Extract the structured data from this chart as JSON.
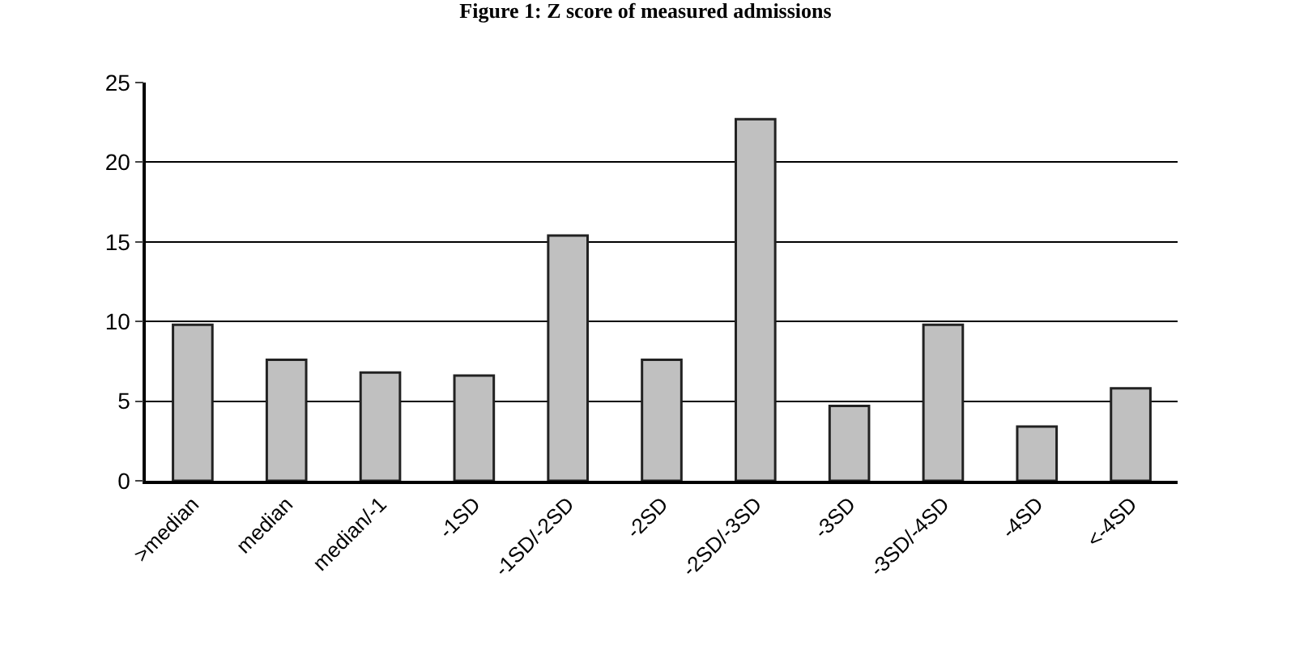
{
  "chart_data": {
    "type": "bar",
    "title": "Figure 1: Z score of measured admissions",
    "categories": [
      ">median",
      "median",
      "median/-1",
      "-1SD",
      "-1SD/-2SD",
      "-2SD",
      "-2SD/-3SD",
      "-3SD",
      "-3SD/-4SD",
      "-4SD",
      "<-4SD"
    ],
    "values": [
      9.8,
      7.6,
      6.8,
      6.6,
      15.4,
      7.6,
      22.7,
      4.7,
      9.8,
      3.4,
      5.8
    ],
    "color": "#c0c0c0",
    "ylim": [
      0,
      25
    ],
    "yticks": [
      0,
      5,
      10,
      15,
      20,
      25
    ],
    "grid": "y"
  }
}
